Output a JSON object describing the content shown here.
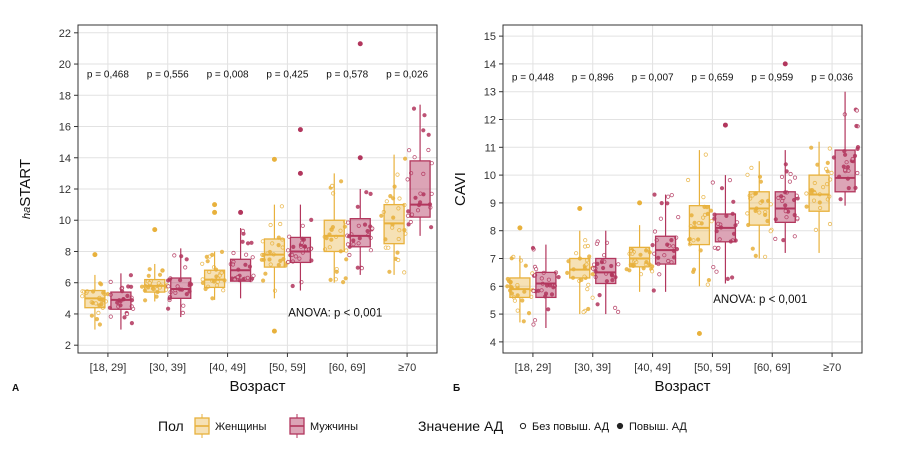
{
  "colors": {
    "female": "#e8b13c",
    "male": "#b2365d",
    "grid": "#e2e2e2",
    "border": "#333333"
  },
  "chart_data": [
    {
      "panel_letter": "А",
      "type": "box",
      "ylabel_prefix": "ha",
      "ylabel_main": "START",
      "xlabel": "Возраст",
      "categories": [
        "[18, 29]",
        "[30, 39]",
        "[40, 49]",
        "[50, 59]",
        "[60, 69]",
        "≥70"
      ],
      "ylim": [
        1.5,
        22.5
      ],
      "yticks": [
        2,
        4,
        6,
        8,
        10,
        12,
        14,
        16,
        18,
        20,
        22
      ],
      "pvalues": [
        "p = 0,468",
        "p = 0,556",
        "p = 0,008",
        "p = 0,425",
        "p = 0,578",
        "p = 0,026"
      ],
      "pvalue_y": 19.4,
      "anova": "ANOVA: p < 0,001",
      "anova_y": 4.1,
      "series": [
        {
          "name": "Женщины",
          "boxes": [
            {
              "min": 3.0,
              "q1": 4.4,
              "median": 5.0,
              "q3": 5.5,
              "max": 6.5,
              "outliers": [
                7.8
              ]
            },
            {
              "min": 4.8,
              "q1": 5.4,
              "median": 5.8,
              "q3": 6.2,
              "max": 7.2,
              "outliers": [
                9.4
              ]
            },
            {
              "min": 4.9,
              "q1": 5.7,
              "median": 6.2,
              "q3": 6.8,
              "max": 8.0,
              "outliers": [
                10.5,
                11.0
              ]
            },
            {
              "min": 5.0,
              "q1": 7.0,
              "median": 7.8,
              "q3": 8.8,
              "max": 11.0,
              "outliers": [
                2.9,
                13.9
              ]
            },
            {
              "min": 6.0,
              "q1": 8.0,
              "median": 9.0,
              "q3": 10.0,
              "max": 13.0,
              "outliers": []
            },
            {
              "min": 6.5,
              "q1": 8.5,
              "median": 9.8,
              "q3": 11.0,
              "max": 14.2,
              "outliers": []
            }
          ]
        },
        {
          "name": "Мужчины",
          "boxes": [
            {
              "min": 3.0,
              "q1": 4.3,
              "median": 4.9,
              "q3": 5.4,
              "max": 6.6,
              "outliers": []
            },
            {
              "min": 3.8,
              "q1": 5.0,
              "median": 5.6,
              "q3": 6.3,
              "max": 8.2,
              "outliers": []
            },
            {
              "min": 5.0,
              "q1": 6.1,
              "median": 6.8,
              "q3": 7.5,
              "max": 9.5,
              "outliers": [
                10.5
              ]
            },
            {
              "min": 5.5,
              "q1": 7.3,
              "median": 8.0,
              "q3": 8.9,
              "max": 11.0,
              "outliers": [
                13.0,
                15.8
              ]
            },
            {
              "min": 6.5,
              "q1": 8.3,
              "median": 9.0,
              "q3": 10.1,
              "max": 12.0,
              "outliers": [
                14.0,
                21.3
              ]
            },
            {
              "min": 9.0,
              "q1": 10.2,
              "median": 11.0,
              "q3": 13.8,
              "max": 17.4,
              "outliers": []
            }
          ]
        }
      ]
    },
    {
      "panel_letter": "Б",
      "type": "box",
      "ylabel_prefix": "",
      "ylabel_main": "CAVI",
      "xlabel": "Возраст",
      "categories": [
        "[18, 29]",
        "[30, 39]",
        "[40, 49]",
        "[50, 59]",
        "[60, 69]",
        "≥70"
      ],
      "ylim": [
        3.6,
        15.4
      ],
      "yticks": [
        4,
        5,
        6,
        7,
        8,
        9,
        10,
        11,
        12,
        13,
        14,
        15
      ],
      "pvalues": [
        "p = 0,448",
        "p = 0,896",
        "p = 0,007",
        "p = 0,659",
        "p = 0,959",
        "p = 0,036"
      ],
      "pvalue_y": 13.55,
      "anova": "ANOVA: p < 0,001",
      "anova_y": 5.55,
      "series": [
        {
          "name": "Женщины",
          "boxes": [
            {
              "min": 4.7,
              "q1": 5.6,
              "median": 5.9,
              "q3": 6.3,
              "max": 7.1,
              "outliers": [
                8.1
              ]
            },
            {
              "min": 5.0,
              "q1": 6.3,
              "median": 6.6,
              "q3": 7.0,
              "max": 8.0,
              "outliers": [
                8.8
              ]
            },
            {
              "min": 5.8,
              "q1": 6.7,
              "median": 7.0,
              "q3": 7.4,
              "max": 8.2,
              "outliers": [
                9.0
              ]
            },
            {
              "min": 6.0,
              "q1": 7.5,
              "median": 8.1,
              "q3": 8.9,
              "max": 10.9,
              "outliers": [
                4.3
              ]
            },
            {
              "min": 7.0,
              "q1": 8.2,
              "median": 8.8,
              "q3": 9.4,
              "max": 10.5,
              "outliers": []
            },
            {
              "min": 7.2,
              "q1": 8.7,
              "median": 9.3,
              "q3": 10.0,
              "max": 11.2,
              "outliers": []
            }
          ]
        },
        {
          "name": "Мужчины",
          "boxes": [
            {
              "min": 4.5,
              "q1": 5.6,
              "median": 6.1,
              "q3": 6.5,
              "max": 7.5,
              "outliers": []
            },
            {
              "min": 5.0,
              "q1": 6.1,
              "median": 6.5,
              "q3": 7.0,
              "max": 8.0,
              "outliers": []
            },
            {
              "min": 5.8,
              "q1": 6.8,
              "median": 7.3,
              "q3": 7.8,
              "max": 9.3,
              "outliers": []
            },
            {
              "min": 6.1,
              "q1": 7.6,
              "median": 8.1,
              "q3": 8.6,
              "max": 10.0,
              "outliers": [
                11.8
              ]
            },
            {
              "min": 7.2,
              "q1": 8.3,
              "median": 8.8,
              "q3": 9.4,
              "max": 10.9,
              "outliers": [
                14.0
              ]
            },
            {
              "min": 8.9,
              "q1": 9.4,
              "median": 9.9,
              "q3": 10.9,
              "max": 13.0,
              "outliers": []
            }
          ]
        }
      ]
    }
  ],
  "legend": {
    "sex_title": "Пол",
    "sex_items": [
      "Женщины",
      "Мужчины"
    ],
    "bp_title": "Значение АД",
    "bp_items": [
      "Без повыш. АД",
      "Повыш. АД"
    ]
  }
}
